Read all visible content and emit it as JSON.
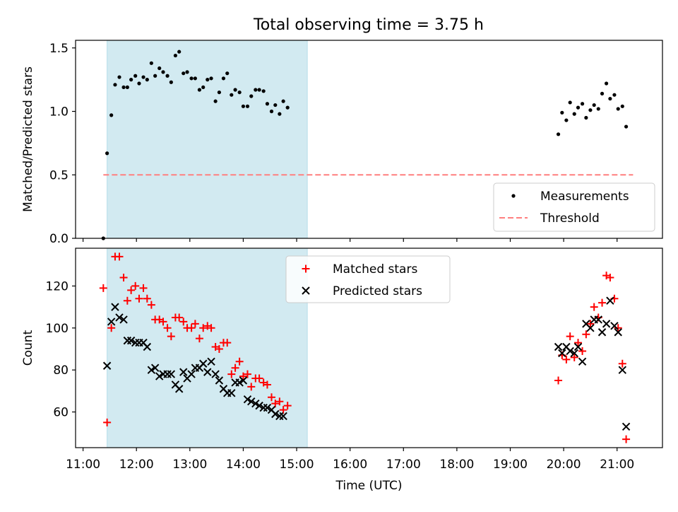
{
  "title": "Total observing time = 3.75 h",
  "chart_data": [
    {
      "type": "scatter",
      "ylabel": "Matched/Predicted stars",
      "ylim": [
        0,
        1.56
      ],
      "yticks": [
        0,
        0.5,
        1.0,
        1.5
      ],
      "ytick_labels": [
        "0.0",
        "0.5",
        "1.0",
        "1.5"
      ],
      "x_unit": "hours UTC",
      "xlim": [
        10.86,
        21.85
      ],
      "shaded_span_x": [
        11.45,
        15.2
      ],
      "shaded_color": "#add8e6",
      "legend_position": "lower right",
      "series": [
        {
          "name": "Measurements",
          "marker": "dot",
          "color": "#000000",
          "points": [
            [
              11.38,
              0.0
            ],
            [
              11.45,
              0.67
            ],
            [
              11.53,
              0.97
            ],
            [
              11.6,
              1.21
            ],
            [
              11.68,
              1.27
            ],
            [
              11.76,
              1.19
            ],
            [
              11.83,
              1.19
            ],
            [
              11.9,
              1.25
            ],
            [
              11.98,
              1.28
            ],
            [
              12.05,
              1.22
            ],
            [
              12.13,
              1.27
            ],
            [
              12.2,
              1.25
            ],
            [
              12.28,
              1.38
            ],
            [
              12.35,
              1.28
            ],
            [
              12.43,
              1.34
            ],
            [
              12.5,
              1.31
            ],
            [
              12.58,
              1.28
            ],
            [
              12.65,
              1.23
            ],
            [
              12.73,
              1.44
            ],
            [
              12.8,
              1.47
            ],
            [
              12.88,
              1.3
            ],
            [
              12.95,
              1.31
            ],
            [
              13.03,
              1.26
            ],
            [
              13.1,
              1.26
            ],
            [
              13.18,
              1.17
            ],
            [
              13.25,
              1.19
            ],
            [
              13.33,
              1.25
            ],
            [
              13.4,
              1.26
            ],
            [
              13.48,
              1.08
            ],
            [
              13.55,
              1.15
            ],
            [
              13.63,
              1.26
            ],
            [
              13.7,
              1.3
            ],
            [
              13.78,
              1.13
            ],
            [
              13.85,
              1.17
            ],
            [
              13.93,
              1.15
            ],
            [
              14.0,
              1.04
            ],
            [
              14.08,
              1.04
            ],
            [
              14.15,
              1.12
            ],
            [
              14.23,
              1.17
            ],
            [
              14.3,
              1.17
            ],
            [
              14.38,
              1.16
            ],
            [
              14.45,
              1.06
            ],
            [
              14.53,
              1.0
            ],
            [
              14.6,
              1.05
            ],
            [
              14.68,
              0.98
            ],
            [
              14.75,
              1.08
            ],
            [
              14.83,
              1.03
            ],
            [
              19.9,
              0.82
            ],
            [
              19.97,
              0.99
            ],
            [
              20.05,
              0.93
            ],
            [
              20.12,
              1.07
            ],
            [
              20.2,
              0.98
            ],
            [
              20.27,
              1.03
            ],
            [
              20.35,
              1.06
            ],
            [
              20.42,
              0.95
            ],
            [
              20.5,
              1.01
            ],
            [
              20.57,
              1.05
            ],
            [
              20.65,
              1.02
            ],
            [
              20.72,
              1.14
            ],
            [
              20.8,
              1.22
            ],
            [
              20.87,
              1.1
            ],
            [
              20.95,
              1.13
            ],
            [
              21.02,
              1.02
            ],
            [
              21.1,
              1.04
            ],
            [
              21.17,
              0.88
            ]
          ]
        },
        {
          "name": "Threshold",
          "marker": "dashed-line",
          "color": "#ff7f7f",
          "points": [
            [
              11.38,
              0.5
            ],
            [
              21.3,
              0.5
            ]
          ]
        }
      ]
    },
    {
      "type": "scatter",
      "ylabel": "Count",
      "xlabel": "Time (UTC)",
      "ylim": [
        43,
        138
      ],
      "yticks": [
        60,
        80,
        100,
        120
      ],
      "ytick_labels": [
        "60",
        "80",
        "100",
        "120"
      ],
      "xlim": [
        10.86,
        21.85
      ],
      "xticks": [
        11,
        12,
        13,
        14,
        15,
        16,
        17,
        18,
        19,
        20,
        21
      ],
      "xtick_labels": [
        "11:00",
        "12:00",
        "13:00",
        "14:00",
        "15:00",
        "16:00",
        "17:00",
        "18:00",
        "19:00",
        "20:00",
        "21:00"
      ],
      "shaded_span_x": [
        11.45,
        15.2
      ],
      "shaded_color": "#add8e6",
      "legend_position": "upper center",
      "series": [
        {
          "name": "Matched stars",
          "marker": "plus",
          "color": "#ff0000",
          "points": [
            [
              11.38,
              119
            ],
            [
              11.45,
              55
            ],
            [
              11.53,
              100
            ],
            [
              11.6,
              134
            ],
            [
              11.68,
              134
            ],
            [
              11.76,
              124
            ],
            [
              11.83,
              113
            ],
            [
              11.9,
              118
            ],
            [
              11.98,
              120
            ],
            [
              12.05,
              114
            ],
            [
              12.13,
              119
            ],
            [
              12.2,
              114
            ],
            [
              12.28,
              111
            ],
            [
              12.35,
              104
            ],
            [
              12.43,
              104
            ],
            [
              12.5,
              103
            ],
            [
              12.58,
              100
            ],
            [
              12.65,
              96
            ],
            [
              12.73,
              105
            ],
            [
              12.8,
              105
            ],
            [
              12.88,
              103
            ],
            [
              12.95,
              100
            ],
            [
              13.03,
              100
            ],
            [
              13.1,
              102
            ],
            [
              13.18,
              95
            ],
            [
              13.25,
              100
            ],
            [
              13.33,
              101
            ],
            [
              13.4,
              100
            ],
            [
              13.48,
              91
            ],
            [
              13.55,
              90
            ],
            [
              13.63,
              93
            ],
            [
              13.7,
              93
            ],
            [
              13.78,
              78
            ],
            [
              13.85,
              81
            ],
            [
              13.93,
              84
            ],
            [
              14.0,
              77
            ],
            [
              14.08,
              78
            ],
            [
              14.15,
              72
            ],
            [
              14.23,
              76
            ],
            [
              14.3,
              76
            ],
            [
              14.38,
              74
            ],
            [
              14.45,
              73
            ],
            [
              14.53,
              67
            ],
            [
              14.6,
              64
            ],
            [
              14.68,
              65
            ],
            [
              14.75,
              61
            ],
            [
              14.83,
              63
            ],
            [
              19.9,
              75
            ],
            [
              19.97,
              87
            ],
            [
              20.05,
              85
            ],
            [
              20.12,
              96
            ],
            [
              20.2,
              86
            ],
            [
              20.27,
              93
            ],
            [
              20.35,
              89
            ],
            [
              20.42,
              97
            ],
            [
              20.5,
              102
            ],
            [
              20.57,
              110
            ],
            [
              20.65,
              105
            ],
            [
              20.72,
              112
            ],
            [
              20.8,
              125
            ],
            [
              20.87,
              124
            ],
            [
              20.95,
              114
            ],
            [
              21.02,
              100
            ],
            [
              21.1,
              83
            ],
            [
              21.17,
              47
            ]
          ]
        },
        {
          "name": "Predicted stars",
          "marker": "x",
          "color": "#000000",
          "points": [
            [
              11.45,
              82
            ],
            [
              11.53,
              103
            ],
            [
              11.6,
              110
            ],
            [
              11.68,
              105
            ],
            [
              11.76,
              104
            ],
            [
              11.83,
              94
            ],
            [
              11.9,
              94
            ],
            [
              11.98,
              93
            ],
            [
              12.05,
              93
            ],
            [
              12.13,
              93
            ],
            [
              12.2,
              91
            ],
            [
              12.28,
              80
            ],
            [
              12.35,
              81
            ],
            [
              12.43,
              77
            ],
            [
              12.5,
              78
            ],
            [
              12.58,
              78
            ],
            [
              12.65,
              78
            ],
            [
              12.73,
              73
            ],
            [
              12.8,
              71
            ],
            [
              12.88,
              79
            ],
            [
              12.95,
              76
            ],
            [
              13.03,
              78
            ],
            [
              13.1,
              81
            ],
            [
              13.18,
              81
            ],
            [
              13.25,
              83
            ],
            [
              13.33,
              79
            ],
            [
              13.4,
              84
            ],
            [
              13.48,
              78
            ],
            [
              13.55,
              75
            ],
            [
              13.63,
              71
            ],
            [
              13.7,
              69
            ],
            [
              13.78,
              69
            ],
            [
              13.85,
              74
            ],
            [
              13.93,
              74
            ],
            [
              14.0,
              75
            ],
            [
              14.08,
              66
            ],
            [
              14.15,
              65
            ],
            [
              14.23,
              64
            ],
            [
              14.3,
              63
            ],
            [
              14.38,
              62
            ],
            [
              14.45,
              62
            ],
            [
              14.53,
              61
            ],
            [
              14.6,
              59
            ],
            [
              14.68,
              58
            ],
            [
              14.75,
              58
            ],
            [
              19.9,
              91
            ],
            [
              19.97,
              88
            ],
            [
              20.05,
              91
            ],
            [
              20.12,
              89
            ],
            [
              20.2,
              88
            ],
            [
              20.27,
              91
            ],
            [
              20.35,
              84
            ],
            [
              20.42,
              102
            ],
            [
              20.5,
              100
            ],
            [
              20.57,
              104
            ],
            [
              20.65,
              104
            ],
            [
              20.72,
              98
            ],
            [
              20.8,
              102
            ],
            [
              20.87,
              113
            ],
            [
              20.95,
              101
            ],
            [
              21.02,
              98
            ],
            [
              21.1,
              80
            ],
            [
              21.17,
              53
            ]
          ]
        }
      ]
    }
  ]
}
